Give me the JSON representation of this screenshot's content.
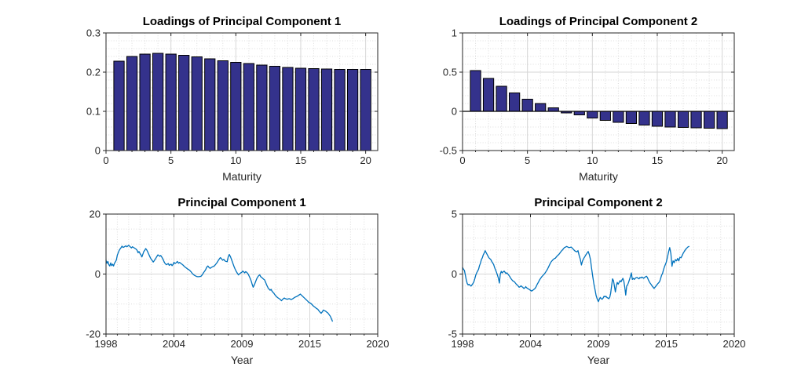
{
  "figure": {
    "background": "#ffffff"
  },
  "colors": {
    "bar_fill": "#34328C",
    "bar_edge": "#000000",
    "line": "#0072BD",
    "axis": "#262626",
    "grid_major": "#d6d6d6",
    "grid_minor": "#dcdcdc",
    "tick_label": "#262626",
    "title": "#000000",
    "zero_line": "#000000"
  },
  "chart_data": [
    {
      "id": "loadings-pc1",
      "type": "bar",
      "title": "Loadings of Principal Component 1",
      "xlabel": "Maturity",
      "xlim": [
        0,
        20.93
      ],
      "ylim": [
        0,
        0.3
      ],
      "xticks": [
        0,
        5,
        10,
        15,
        20
      ],
      "xtick_labels": [
        "0",
        "5",
        "10",
        "15",
        "20"
      ],
      "yticks": [
        0,
        0.1,
        0.2,
        0.3
      ],
      "ytick_labels": [
        "0",
        "0.1",
        "0.2",
        "0.3"
      ],
      "xminor": [
        1,
        2,
        3,
        4,
        6,
        7,
        8,
        9,
        11,
        12,
        13,
        14,
        16,
        17,
        18,
        19
      ],
      "yminor": [
        0.02,
        0.04,
        0.06,
        0.08,
        0.12,
        0.14,
        0.16,
        0.18,
        0.22,
        0.24,
        0.26,
        0.28
      ],
      "bar_width": 0.8,
      "categories": [
        1,
        2,
        3,
        4,
        5,
        6,
        7,
        8,
        9,
        10,
        11,
        12,
        13,
        14,
        15,
        16,
        17,
        18,
        19,
        20
      ],
      "values": [
        0.228,
        0.24,
        0.246,
        0.248,
        0.246,
        0.243,
        0.239,
        0.234,
        0.229,
        0.225,
        0.222,
        0.218,
        0.215,
        0.212,
        0.21,
        0.209,
        0.208,
        0.207,
        0.207,
        0.207
      ]
    },
    {
      "id": "loadings-pc2",
      "type": "bar",
      "title": "Loadings of Principal Component 2",
      "xlabel": "Maturity",
      "xlim": [
        0,
        20.93
      ],
      "ylim": [
        -0.5,
        1
      ],
      "xticks": [
        0,
        5,
        10,
        15,
        20
      ],
      "xtick_labels": [
        "0",
        "5",
        "10",
        "15",
        "20"
      ],
      "yticks": [
        -0.5,
        0,
        0.5,
        1
      ],
      "ytick_labels": [
        "-0.5",
        "0",
        "0.5",
        "1"
      ],
      "xminor": [
        1,
        2,
        3,
        4,
        6,
        7,
        8,
        9,
        11,
        12,
        13,
        14,
        16,
        17,
        18,
        19
      ],
      "yminor": [
        -0.4,
        -0.3,
        -0.2,
        -0.1,
        0.1,
        0.2,
        0.3,
        0.4,
        0.6,
        0.7,
        0.8,
        0.9
      ],
      "bar_width": 0.8,
      "zero_line": true,
      "categories": [
        1,
        2,
        3,
        4,
        5,
        6,
        7,
        8,
        9,
        10,
        11,
        12,
        13,
        14,
        15,
        16,
        17,
        18,
        19,
        20
      ],
      "values": [
        0.52,
        0.42,
        0.32,
        0.235,
        0.155,
        0.1,
        0.045,
        -0.02,
        -0.045,
        -0.085,
        -0.115,
        -0.14,
        -0.155,
        -0.175,
        -0.19,
        -0.2,
        -0.205,
        -0.21,
        -0.215,
        -0.22
      ]
    },
    {
      "id": "pc1-series",
      "type": "line",
      "title": "Principal Component 1",
      "xlabel": "Year",
      "xticks": [
        1998,
        2004,
        2009,
        2015,
        2020
      ],
      "xtick_labels": [
        "1998",
        "2004",
        "2009",
        "2015",
        "2020"
      ],
      "ylim": [
        -20,
        20
      ],
      "yticks": [
        -20,
        0,
        20
      ],
      "ytick_labels": [
        "-20",
        "0",
        "20"
      ],
      "xminor": [
        1999,
        2000,
        2001,
        2002,
        2003,
        2005,
        2006,
        2007,
        2008,
        2010,
        2011,
        2012,
        2013,
        2014,
        2016,
        2017,
        2018,
        2019
      ],
      "yminor": [
        -15,
        -10,
        -5,
        5,
        10,
        15
      ],
      "series": {
        "x_start": 1998,
        "x_step": 0.0833333,
        "values": [
          4.6,
          3.6,
          4.2,
          3.1,
          2.7,
          3.7,
          2.8,
          3.3,
          2.7,
          3.6,
          4.1,
          4.7,
          6.3,
          7.1,
          7.9,
          8.4,
          8.8,
          9.3,
          8.9,
          9.0,
          9.2,
          9.4,
          9.1,
          9.3,
          9.6,
          9.3,
          9.0,
          8.7,
          9.1,
          8.9,
          8.7,
          8.5,
          8.3,
          7.9,
          7.1,
          7.5,
          6.9,
          6.4,
          5.7,
          6.6,
          7.5,
          7.9,
          8.5,
          8.1,
          7.5,
          6.8,
          6.1,
          5.4,
          4.9,
          4.5,
          4.0,
          4.4,
          4.9,
          5.4,
          5.9,
          6.4,
          6.2,
          5.9,
          6.2,
          5.7,
          5.2,
          4.5,
          3.8,
          3.4,
          3.1,
          3.3,
          3.5,
          2.9,
          3.1,
          3.3,
          2.8,
          3.2,
          3.9,
          3.5,
          3.8,
          4.2,
          3.6,
          3.9,
          3.6,
          3.3,
          3.0,
          2.6,
          2.3,
          2.0,
          1.7,
          1.5,
          1.2,
          0.8,
          0.3,
          -0.1,
          -0.4,
          -0.6,
          -0.8,
          -0.9,
          -0.9,
          -0.8,
          -0.7,
          -0.3,
          0.4,
          0.9,
          1.5,
          2.3,
          2.7,
          2.2,
          1.9,
          2.2,
          2.4,
          2.6,
          2.8,
          3.3,
          3.8,
          4.4,
          5.0,
          5.5,
          5.1,
          4.6,
          4.9,
          4.4,
          4.2,
          4.1,
          5.8,
          6.5,
          5.7,
          4.7,
          3.6,
          2.6,
          1.7,
          0.9,
          0.3,
          -0.3,
          0.1,
          0.4,
          0.6,
          1.0,
          0.7,
          0.4,
          0.8,
          0.6,
          0.3,
          -0.2,
          -0.9,
          -1.6,
          -2.4,
          -3.5,
          -4.4,
          -3.8,
          -3.0,
          -2.2,
          -1.4,
          -0.9,
          -0.5,
          -0.3,
          -0.9,
          -1.1,
          -1.4,
          -1.7,
          -1.9,
          -2.6,
          -3.4,
          -4.1,
          -4.7,
          -5.1,
          -5.4,
          -5.1,
          -5.7,
          -6.1,
          -6.4,
          -6.9,
          -7.3,
          -7.6,
          -7.9,
          -8.1,
          -8.3,
          -8.6,
          -8.9,
          -8.5,
          -8.2,
          -8.0,
          -8.2,
          -8.3,
          -8.4,
          -8.3,
          -8.2,
          -8.3,
          -8.5,
          -8.4,
          -8.2,
          -8.0,
          -7.8,
          -7.6,
          -7.5,
          -7.3,
          -7.1,
          -6.9,
          -6.7,
          -7.0,
          -7.3,
          -7.6,
          -7.9,
          -8.2,
          -8.5,
          -8.8,
          -9.1,
          -9.5,
          -9.6,
          -9.8,
          -10.2,
          -10.6,
          -10.9,
          -11.2,
          -11.5,
          -11.7,
          -12.2,
          -12.7,
          -13.1,
          -12.6,
          -12.0,
          -12.2,
          -12.4,
          -12.7,
          -13.0,
          -13.5,
          -14.0,
          -14.8,
          -15.7
        ]
      }
    },
    {
      "id": "pc2-series",
      "type": "line",
      "title": "Principal Component 2",
      "xlabel": "Year",
      "xticks": [
        1998,
        2004,
        2009,
        2015,
        2020
      ],
      "xtick_labels": [
        "1998",
        "2004",
        "2009",
        "2015",
        "2020"
      ],
      "ylim": [
        -5,
        5
      ],
      "yticks": [
        -5,
        0,
        5
      ],
      "ytick_labels": [
        "-5",
        "0",
        "5"
      ],
      "xminor": [
        1999,
        2000,
        2001,
        2002,
        2003,
        2005,
        2006,
        2007,
        2008,
        2010,
        2011,
        2012,
        2013,
        2014,
        2016,
        2017,
        2018,
        2019
      ],
      "yminor": [
        -4,
        -3,
        -2,
        -1,
        1,
        2,
        3,
        4
      ],
      "series": {
        "x_start": 1998,
        "x_step": 0.0833333,
        "values": [
          0.55,
          0.4,
          0.3,
          -0.1,
          -0.5,
          -0.8,
          -0.9,
          -0.85,
          -0.95,
          -1.0,
          -0.9,
          -0.8,
          -0.65,
          -0.4,
          -0.1,
          0.1,
          0.25,
          0.4,
          0.7,
          0.9,
          1.2,
          1.35,
          1.6,
          1.75,
          1.95,
          1.8,
          1.65,
          1.5,
          1.35,
          1.28,
          1.2,
          1.05,
          0.92,
          0.8,
          0.55,
          0.35,
          0.15,
          -0.1,
          -0.35,
          -0.75,
          0.0,
          0.22,
          0.1,
          0.18,
          0.25,
          0.15,
          0.05,
          0.1,
          0.0,
          -0.1,
          -0.2,
          -0.35,
          -0.45,
          -0.55,
          -0.6,
          -0.65,
          -0.75,
          -0.85,
          -0.92,
          -1.0,
          -1.1,
          -1.05,
          -0.98,
          -1.05,
          -1.12,
          -1.2,
          -1.15,
          -1.05,
          -1.15,
          -1.2,
          -1.25,
          -1.3,
          -1.35,
          -1.42,
          -1.35,
          -1.28,
          -1.2,
          -1.05,
          -0.85,
          -0.68,
          -0.5,
          -0.35,
          -0.22,
          -0.12,
          -0.02,
          0.1,
          0.25,
          0.4,
          0.6,
          0.8,
          0.98,
          1.1,
          1.2,
          1.28,
          1.32,
          1.45,
          1.55,
          1.62,
          1.75,
          1.88,
          1.98,
          2.1,
          2.2,
          2.25,
          2.3,
          2.25,
          2.2,
          2.22,
          2.25,
          2.15,
          2.05,
          1.95,
          1.88,
          1.85,
          1.95,
          1.55,
          1.25,
          0.75,
          1.1,
          1.3,
          1.45,
          1.6,
          1.75,
          1.88,
          1.6,
          1.2,
          0.5,
          -0.2,
          -0.8,
          -1.3,
          -1.8,
          -2.1,
          -2.3,
          -2.1,
          -1.95,
          -2.05,
          -2.1,
          -2.0,
          -1.85,
          -1.9,
          -1.85,
          -1.95,
          -2.0,
          -2.05,
          -1.95,
          -1.6,
          -1.0,
          -0.4,
          -0.55,
          -1.0,
          -1.5,
          -1.0,
          -0.7,
          -0.85,
          -0.7,
          -0.55,
          -0.65,
          -0.5,
          -0.35,
          -0.6,
          -1.1,
          -1.75,
          -1.0,
          -0.9,
          -0.7,
          -0.45,
          -0.2,
          0.1,
          -0.45,
          -0.35,
          -0.45,
          -0.35,
          -0.3,
          -0.28,
          -0.35,
          -0.4,
          -0.28,
          -0.33,
          -0.25,
          -0.3,
          -0.35,
          -0.28,
          -0.22,
          -0.18,
          -0.3,
          -0.5,
          -0.65,
          -0.78,
          -0.88,
          -1.0,
          -1.1,
          -1.2,
          -1.1,
          -1.0,
          -0.9,
          -0.8,
          -0.72,
          -0.6,
          -0.35,
          -0.1,
          0.05,
          0.35,
          0.6,
          0.8,
          1.0,
          1.4,
          1.85,
          2.2,
          1.7,
          0.65,
          1.1,
          0.95,
          1.2,
          1.1,
          1.3,
          1.1,
          1.4,
          1.35,
          1.55,
          1.75,
          1.9,
          2.05,
          2.15,
          2.25,
          2.3
        ]
      }
    }
  ]
}
